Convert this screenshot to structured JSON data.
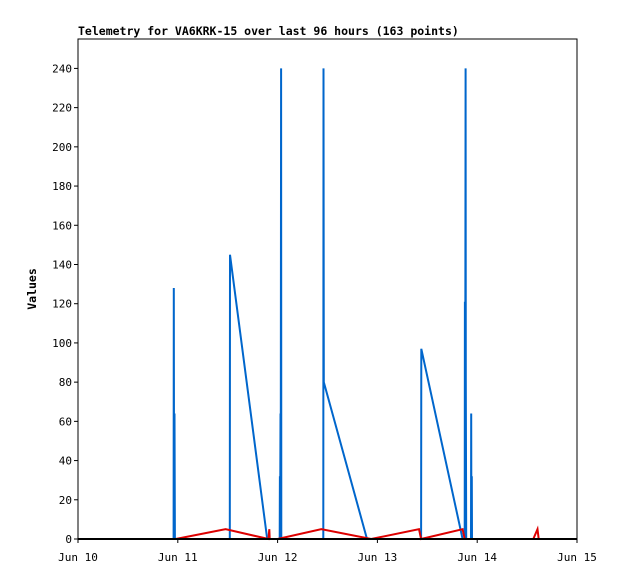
{
  "chart_data": {
    "type": "line",
    "title": "Telemetry for VA6KRK-15 over last 96 hours (163 points)",
    "ylabel": "Values",
    "xlabel": "",
    "x_axis": {
      "unit": "hours since Jun 10 00:00",
      "range": [
        0,
        120
      ],
      "ticks": [
        {
          "value": 0,
          "label": "Jun 10"
        },
        {
          "value": 24,
          "label": "Jun 11"
        },
        {
          "value": 48,
          "label": "Jun 12"
        },
        {
          "value": 72,
          "label": "Jun 13"
        },
        {
          "value": 96,
          "label": "Jun 14"
        },
        {
          "value": 120,
          "label": "Jun 15"
        }
      ]
    },
    "y_axis": {
      "range": [
        0,
        255
      ],
      "ticks": [
        0,
        20,
        40,
        60,
        80,
        100,
        120,
        140,
        160,
        180,
        200,
        220,
        240
      ]
    },
    "grid": false,
    "legend": "none",
    "series": [
      {
        "color": "#0066cc",
        "points": [
          [
            23.0,
            0
          ],
          [
            23.05,
            128
          ],
          [
            23.1,
            0
          ],
          [
            23.2,
            64
          ],
          [
            23.3,
            0
          ],
          [
            36.5,
            0
          ],
          [
            36.55,
            145
          ],
          [
            45.5,
            0
          ],
          [
            48.5,
            0
          ],
          [
            48.55,
            32
          ],
          [
            48.6,
            0
          ],
          [
            48.7,
            64
          ],
          [
            48.75,
            0
          ],
          [
            48.85,
            240
          ],
          [
            48.9,
            0
          ],
          [
            59.0,
            0
          ],
          [
            59.05,
            240
          ],
          [
            59.1,
            80
          ],
          [
            69.5,
            0
          ],
          [
            82.5,
            0
          ],
          [
            82.55,
            97
          ],
          [
            92.5,
            0
          ],
          [
            93.0,
            0
          ],
          [
            93.05,
            121
          ],
          [
            93.1,
            0
          ],
          [
            93.2,
            240
          ],
          [
            93.25,
            80
          ],
          [
            93.35,
            0
          ],
          [
            94.5,
            0
          ],
          [
            94.55,
            64
          ],
          [
            94.6,
            0
          ],
          [
            94.7,
            32
          ],
          [
            94.75,
            0
          ]
        ]
      },
      {
        "color": "#dd0000",
        "points": [
          [
            23.5,
            0
          ],
          [
            35.5,
            5
          ],
          [
            45.8,
            0
          ],
          [
            46.0,
            5
          ],
          [
            46.1,
            0
          ],
          [
            48.0,
            0
          ],
          [
            58.5,
            5
          ],
          [
            70.5,
            0
          ],
          [
            82.0,
            5
          ],
          [
            82.5,
            0
          ],
          [
            92.5,
            5
          ],
          [
            93.0,
            0
          ],
          [
            109.5,
            0
          ],
          [
            110.5,
            5
          ],
          [
            110.8,
            0
          ]
        ]
      },
      {
        "color": "#000000",
        "points": [
          [
            0,
            0
          ],
          [
            120,
            0
          ]
        ]
      }
    ]
  }
}
